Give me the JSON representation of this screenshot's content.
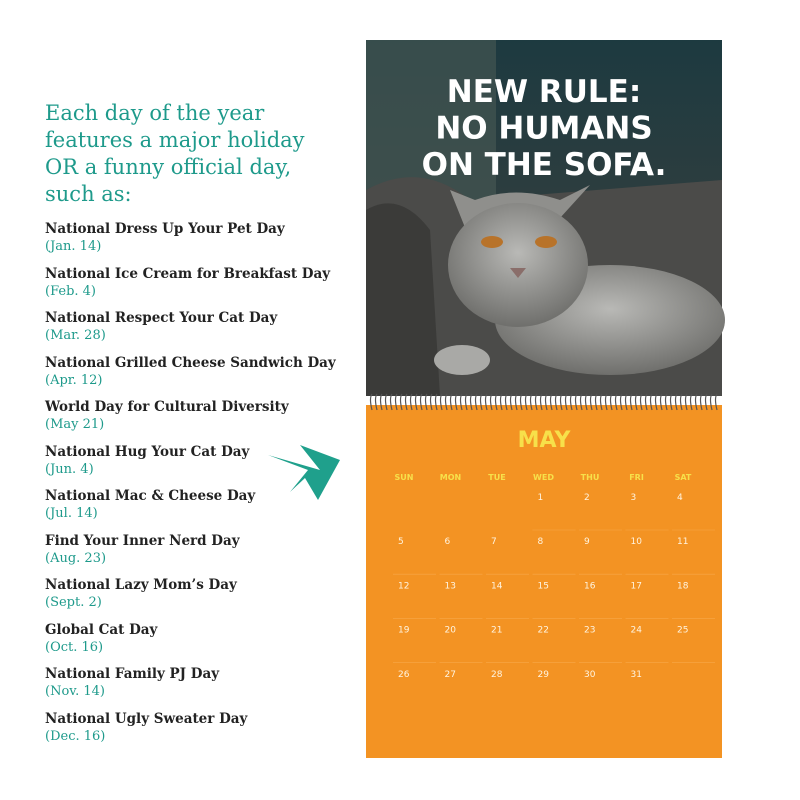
{
  "intro": {
    "lines": [
      "Each day of the year",
      "features a major holiday",
      "OR a funny official day,",
      "such as:"
    ]
  },
  "holidays": [
    {
      "name": "National Dress Up Your Pet Day",
      "date": "(Jan. 14)"
    },
    {
      "name": "National Ice Cream for Breakfast Day",
      "date": "(Feb. 4)"
    },
    {
      "name": "National Respect Your Cat Day",
      "date": "(Mar. 28)"
    },
    {
      "name": "National Grilled Cheese Sandwich Day",
      "date": "(Apr. 12)"
    },
    {
      "name": "World Day for Cultural Diversity",
      "date": "(May 21)"
    },
    {
      "name": "National Hug Your Cat Day",
      "date": "(Jun. 4)"
    },
    {
      "name": "National Mac & Cheese Day",
      "date": "(Jul. 14)"
    },
    {
      "name": "Find Your Inner Nerd Day",
      "date": "(Aug. 23)"
    },
    {
      "name": "National Lazy Mom’s Day",
      "date": "(Sept. 2)"
    },
    {
      "name": "Global Cat Day",
      "date": "(Oct. 16)"
    },
    {
      "name": "National Family PJ Day",
      "date": "(Nov. 14)"
    },
    {
      "name": "National Ugly Sweater Day",
      "date": "(Dec. 16)"
    }
  ],
  "calendar": {
    "headline": {
      "lines": [
        "NEW RULE:",
        "NO HUMANS",
        "ON THE SOFA."
      ]
    },
    "month": "MAY",
    "weekdays": [
      "SUN",
      "MON",
      "TUE",
      "WED",
      "THU",
      "FRI",
      "SAT"
    ],
    "days": [
      1,
      2,
      3,
      4,
      5,
      6,
      7,
      8,
      9,
      10,
      11,
      12,
      13,
      14,
      15,
      16,
      17,
      18,
      19,
      20,
      21,
      22,
      23,
      24,
      25,
      26,
      27,
      28,
      29,
      30,
      31
    ]
  }
}
